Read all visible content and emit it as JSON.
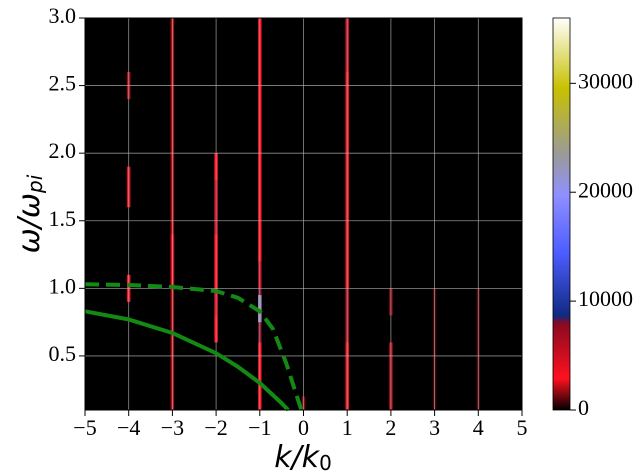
{
  "chart_data": {
    "type": "heatmap",
    "xlabel": {
      "main": "k/k",
      "sub": "0"
    },
    "ylabel": {
      "main": "ω/ω",
      "sub": "pi"
    },
    "xlim": [
      -5,
      5
    ],
    "ylim": [
      0.1,
      3.0
    ],
    "xticks": [
      {
        "value": -5,
        "label": "−5"
      },
      {
        "value": -4,
        "label": "−4"
      },
      {
        "value": -3,
        "label": "−3"
      },
      {
        "value": -2,
        "label": "−2"
      },
      {
        "value": -1,
        "label": "−1"
      },
      0,
      1,
      2,
      3,
      4,
      5
    ],
    "yticks": [
      0.5,
      {
        "value": 1,
        "label": "1.0"
      },
      1.5,
      {
        "value": 2,
        "label": "2.0"
      },
      2.5,
      {
        "value": 3,
        "label": "3.0"
      }
    ],
    "grid": true,
    "background": "#000000",
    "cell_width": 0.08,
    "x": [
      -1,
      -1,
      -1,
      -1,
      1,
      1,
      1,
      -2,
      -2,
      -2,
      -3,
      -3,
      -4,
      -4,
      -4,
      2,
      2,
      0,
      3,
      4
    ],
    "y_low": [
      0.1,
      0.6,
      0.75,
      1.0,
      0.1,
      0.6,
      2.6,
      0.6,
      1.4,
      0.8,
      0.1,
      1.0,
      0.9,
      1.6,
      2.4,
      0.1,
      0.8,
      0.1,
      0.1,
      0.1
    ],
    "y_high": [
      3.0,
      1.0,
      0.95,
      1.2,
      3.0,
      1.0,
      3.0,
      2.0,
      1.8,
      1.0,
      3.0,
      1.4,
      1.1,
      1.9,
      2.6,
      0.6,
      1.0,
      0.2,
      1.0,
      1.0
    ],
    "values": [
      3000,
      8000,
      22000,
      6000,
      3000,
      6000,
      5000,
      3000,
      6000,
      5000,
      2000,
      4000,
      3000,
      4000,
      2000,
      2000,
      1500,
      1500,
      800,
      800
    ],
    "clim": [
      0,
      36000
    ],
    "cticks": [
      0,
      10000,
      20000,
      30000
    ],
    "colormap": [
      [
        0,
        "#000000"
      ],
      [
        0.08,
        "#ff1020"
      ],
      [
        0.22,
        "#8a0a20"
      ],
      [
        0.24,
        "#102a80"
      ],
      [
        0.4,
        "#4c5cff"
      ],
      [
        0.55,
        "#9090ff"
      ],
      [
        0.65,
        "#9a9a9a"
      ],
      [
        0.82,
        "#c8c000"
      ],
      [
        1,
        "#ffffff"
      ]
    ],
    "lines": [
      {
        "color": "#138a13",
        "style": "solid",
        "x": [
          -5,
          -4,
          -3,
          -2,
          -1.5,
          -1,
          -0.5,
          -0.35
        ],
        "y": [
          0.83,
          0.77,
          0.67,
          0.52,
          0.42,
          0.3,
          0.15,
          0.1
        ]
      },
      {
        "color": "#138a13",
        "style": "dashed",
        "x": [
          -5,
          -4,
          -3,
          -2,
          -1.5,
          -1,
          -0.7,
          -0.4,
          -0.2,
          -0.05
        ],
        "y": [
          1.03,
          1.025,
          1.01,
          0.98,
          0.93,
          0.83,
          0.7,
          0.45,
          0.25,
          0.1
        ]
      }
    ]
  }
}
